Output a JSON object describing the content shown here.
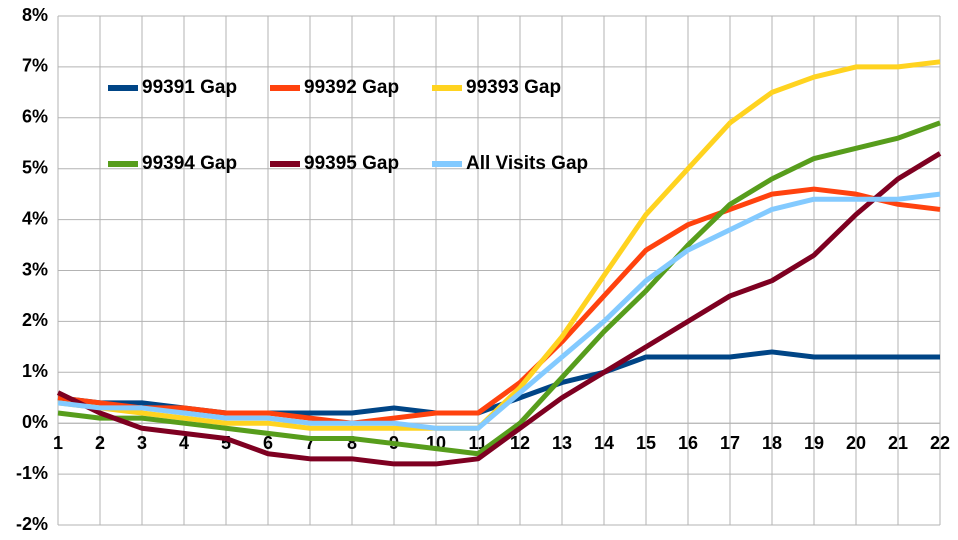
{
  "chart_data": {
    "type": "line",
    "x": [
      1,
      2,
      3,
      4,
      5,
      6,
      7,
      8,
      9,
      10,
      11,
      12,
      13,
      14,
      15,
      16,
      17,
      18,
      19,
      20,
      21,
      22
    ],
    "xlim": [
      1,
      22
    ],
    "xticks": [
      1,
      2,
      3,
      4,
      5,
      6,
      7,
      8,
      9,
      10,
      11,
      12,
      13,
      14,
      15,
      16,
      17,
      18,
      19,
      20,
      21,
      22
    ],
    "ylim": [
      -2,
      8
    ],
    "yticks": [
      {
        "value": -2,
        "label": "-2%"
      },
      {
        "value": -1,
        "label": "-1%"
      },
      {
        "value": 0,
        "label": "0%"
      },
      {
        "value": 1,
        "label": "1%"
      },
      {
        "value": 2,
        "label": "2%"
      },
      {
        "value": 3,
        "label": "3%"
      },
      {
        "value": 4,
        "label": "4%"
      },
      {
        "value": 5,
        "label": "5%"
      },
      {
        "value": 6,
        "label": "6%"
      },
      {
        "value": 7,
        "label": "7%"
      },
      {
        "value": 8,
        "label": "8%"
      }
    ],
    "grid": true,
    "legend": "top-left",
    "series": [
      {
        "name": "99391 Gap",
        "color": "#004586",
        "values": [
          0.5,
          0.4,
          0.4,
          0.3,
          0.2,
          0.2,
          0.2,
          0.2,
          0.3,
          0.2,
          0.2,
          0.5,
          0.8,
          1.0,
          1.3,
          1.3,
          1.3,
          1.4,
          1.3,
          1.3,
          1.3,
          1.3
        ]
      },
      {
        "name": "99392 Gap",
        "color": "#ff420e",
        "values": [
          0.5,
          0.4,
          0.3,
          0.3,
          0.2,
          0.2,
          0.1,
          0.0,
          0.1,
          0.2,
          0.2,
          0.8,
          1.6,
          2.5,
          3.4,
          3.9,
          4.2,
          4.5,
          4.6,
          4.5,
          4.3,
          4.2
        ]
      },
      {
        "name": "99393 Gap",
        "color": "#ffd320",
        "values": [
          0.4,
          0.3,
          0.2,
          0.1,
          0.0,
          0.0,
          -0.1,
          -0.1,
          -0.1,
          -0.1,
          -0.1,
          0.7,
          1.7,
          2.9,
          4.1,
          5.0,
          5.9,
          6.5,
          6.8,
          7.0,
          7.0,
          7.1
        ]
      },
      {
        "name": "99394 Gap",
        "color": "#579d1c",
        "values": [
          0.2,
          0.1,
          0.1,
          0.0,
          -0.1,
          -0.2,
          -0.3,
          -0.3,
          -0.4,
          -0.5,
          -0.6,
          0.0,
          0.9,
          1.8,
          2.6,
          3.5,
          4.3,
          4.8,
          5.2,
          5.4,
          5.6,
          5.9
        ]
      },
      {
        "name": "99395 Gap",
        "color": "#7e0021",
        "values": [
          0.6,
          0.2,
          -0.1,
          -0.2,
          -0.3,
          -0.6,
          -0.7,
          -0.7,
          -0.8,
          -0.8,
          -0.7,
          -0.1,
          0.5,
          1.0,
          1.5,
          2.0,
          2.5,
          2.8,
          3.3,
          4.1,
          4.8,
          5.3
        ]
      },
      {
        "name": "All Visits Gap",
        "color": "#83caff",
        "values": [
          0.4,
          0.3,
          0.3,
          0.2,
          0.1,
          0.1,
          0.0,
          0.0,
          0.0,
          -0.1,
          -0.1,
          0.6,
          1.3,
          2.0,
          2.8,
          3.4,
          3.8,
          4.2,
          4.4,
          4.4,
          4.4,
          4.5
        ]
      }
    ]
  }
}
